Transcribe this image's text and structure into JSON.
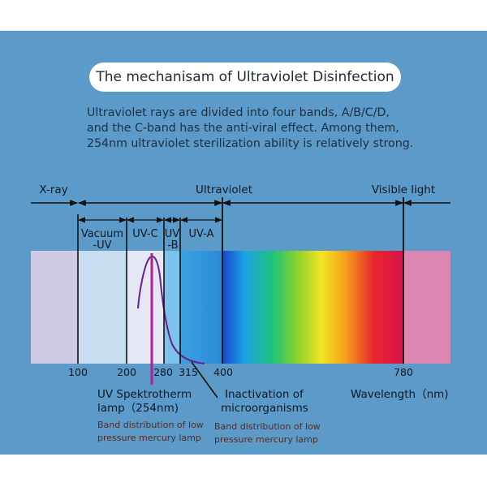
{
  "title": "The mechanisam of Ultraviolet Disinfection",
  "intro_lines": [
    "Ultraviolet rays are divided into four bands, A/B/C/D,",
    "and the C-band has the anti-viral effect. Among them,",
    "254nm ultraviolet sterilization ability is relatively strong."
  ],
  "regions": {
    "xray": "X-ray",
    "ultraviolet": "Ultraviolet",
    "visible": "Visible light"
  },
  "bands": {
    "vacuum_line1": "Vacuum",
    "vacuum_line2": "-UV",
    "uvc": "UV-C",
    "uvb_line1": "UV",
    "uvb_line2": "-B",
    "uva": "UV-A"
  },
  "ticks": [
    "100",
    "200",
    "280",
    "315",
    "400",
    "780"
  ],
  "lamp": {
    "line1": "UV Spektrotherm",
    "line2": "lamp（254nm)",
    "note1": "Band distribution of low",
    "note2": "pressure mercury lamp"
  },
  "inactivation": {
    "line1": "Inactivation of",
    "line2": "microorganisms",
    "note1": "Band distribution of low",
    "note2": "pressure mercury lamp"
  },
  "wavelength_label": "Wavelength（nm)",
  "colors": {
    "panel": "#5b9ac9",
    "lamp_line": "#b0209a",
    "curve": "#6a1f8c"
  }
}
